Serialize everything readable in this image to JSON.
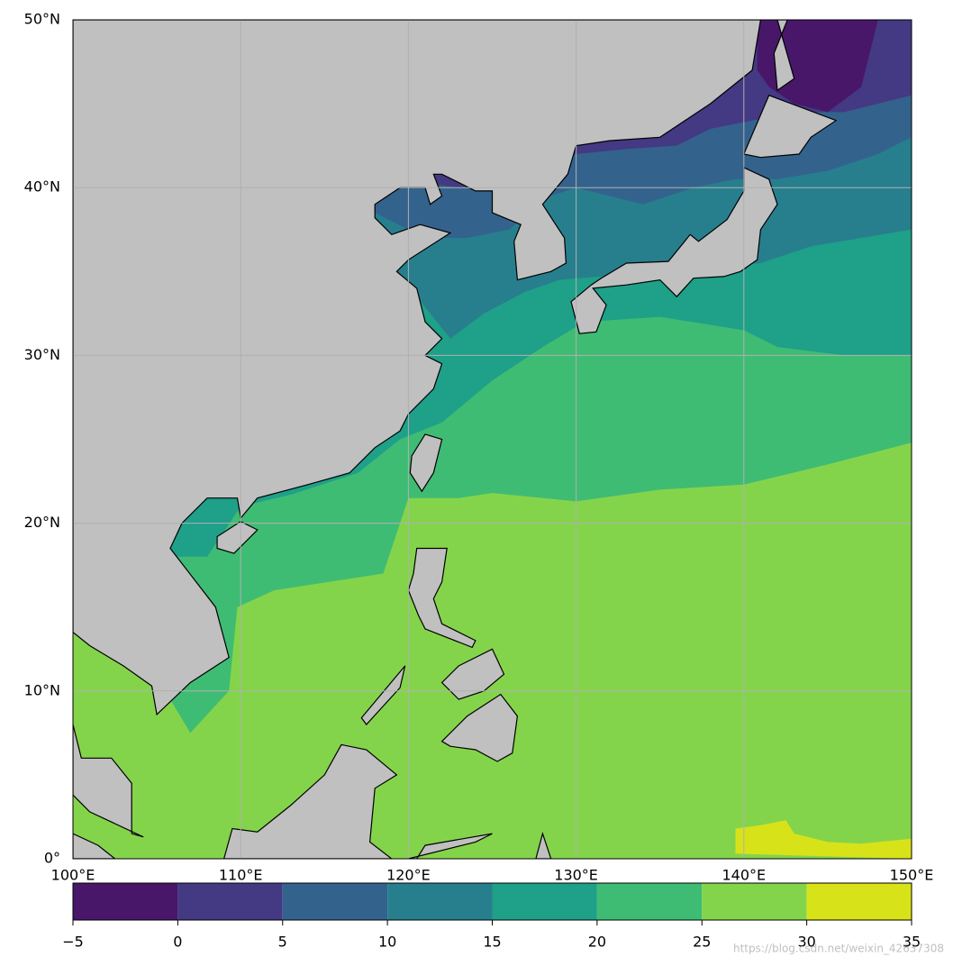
{
  "chart_data": {
    "type": "filled-contour-map",
    "xlim": [
      100,
      150
    ],
    "ylim": [
      0,
      50
    ],
    "xticks": [
      {
        "value": 100,
        "label": "100°E"
      },
      {
        "value": 110,
        "label": "110°E"
      },
      {
        "value": 120,
        "label": "120°E"
      },
      {
        "value": 130,
        "label": "130°E"
      },
      {
        "value": 140,
        "label": "140°E"
      },
      {
        "value": 150,
        "label": "150°E"
      }
    ],
    "yticks": [
      {
        "value": 0,
        "label": "0°"
      },
      {
        "value": 10,
        "label": "10°N"
      },
      {
        "value": 20,
        "label": "20°N"
      },
      {
        "value": 30,
        "label": "30°N"
      },
      {
        "value": 40,
        "label": "40°N"
      },
      {
        "value": 50,
        "label": "50°N"
      }
    ],
    "grid": true,
    "grid_color": "#b0b0b0",
    "land_color": "#c0c0c0",
    "colorbar": {
      "levels": [
        {
          "value": -5,
          "label": "−5"
        },
        0,
        5,
        10,
        15,
        20,
        25,
        30,
        35
      ],
      "colors": [
        "#481769",
        "#443983",
        "#33638d",
        "#277f8e",
        "#1fa088",
        "#3fbc73",
        "#84d44b",
        "#d8e219"
      ]
    }
  },
  "watermark": "https://blog.csdn.net/weixin_42637308"
}
